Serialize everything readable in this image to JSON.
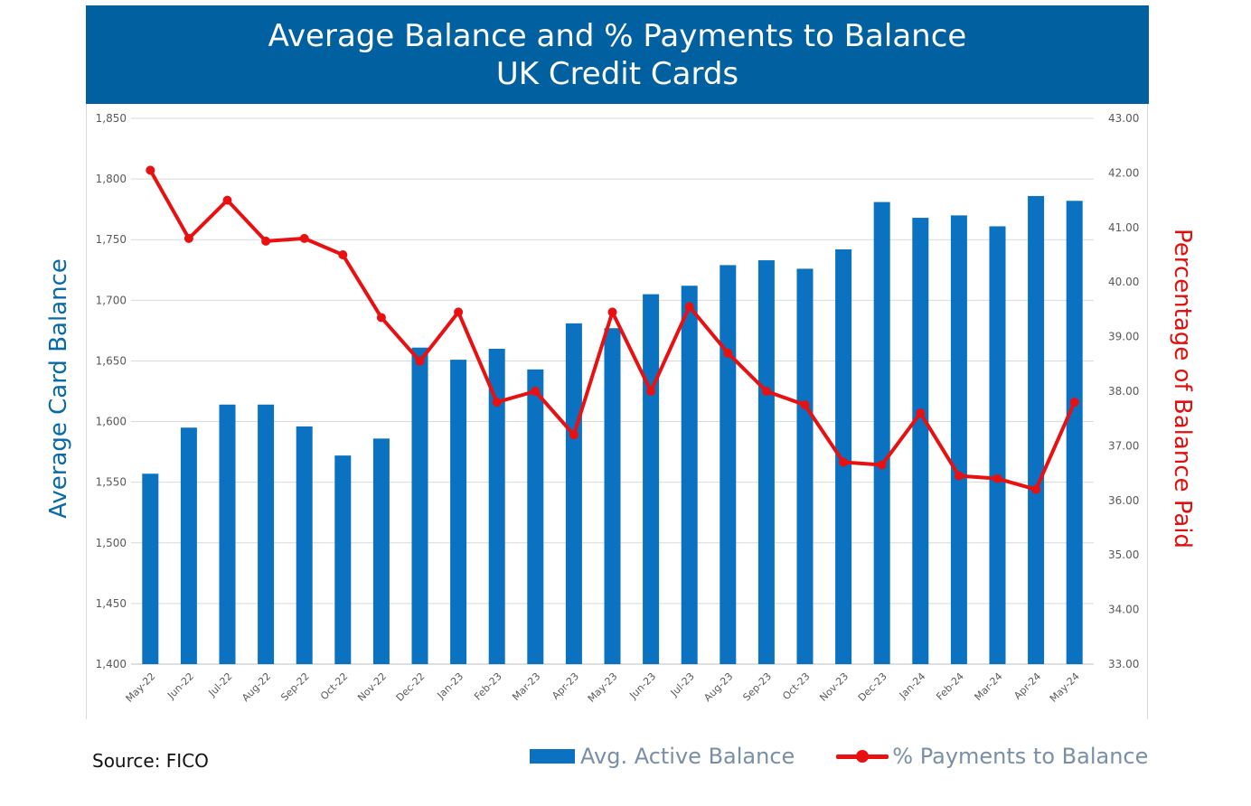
{
  "header": {
    "title_line1": "Average Balance and % Payments to Balance",
    "title_line2": "UK Credit Cards"
  },
  "footer": {
    "source": "Source: FICO"
  },
  "colors": {
    "bar": "#0a72c0",
    "line": "#e81010",
    "banner": "#0060a0",
    "left_axis_label": "#0a6aa8",
    "right_axis_label": "#e01010"
  },
  "chart_data": {
    "type": "bar",
    "title": "Average Balance and % Payments to Balance UK Credit Cards",
    "ylabel": "Average Card Balance",
    "y2label": "Percentage of Balance Paid",
    "ylim": [
      1400,
      1850
    ],
    "y2lim": [
      33.0,
      43.0
    ],
    "y_ticks": [
      "1,400",
      "1,450",
      "1,500",
      "1,550",
      "1,600",
      "1,650",
      "1,700",
      "1,750",
      "1,800",
      "1,850"
    ],
    "y2_ticks": [
      "33.00",
      "34.00",
      "35.00",
      "36.00",
      "37.00",
      "38.00",
      "39.00",
      "40.00",
      "41.00",
      "42.00",
      "43.00"
    ],
    "grid": true,
    "legend_position": "bottom-right",
    "categories": [
      "May-22",
      "Jun-22",
      "Jul-22",
      "Aug-22",
      "Sep-22",
      "Oct-22",
      "Nov-22",
      "Dec-22",
      "Jan-23",
      "Feb-23",
      "Mar-23",
      "Apr-23",
      "May-23",
      "Jun-23",
      "Jul-23",
      "Aug-23",
      "Sep-23",
      "Oct-23",
      "Nov-23",
      "Dec-23",
      "Jan-24",
      "Feb-24",
      "Mar-24",
      "Apr-24",
      "May-24"
    ],
    "series": [
      {
        "name": "Avg. Active Balance",
        "type": "bar",
        "axis": "left",
        "values": [
          1557,
          1595,
          1614,
          1614,
          1596,
          1572,
          1586,
          1661,
          1651,
          1660,
          1643,
          1681,
          1677,
          1705,
          1712,
          1729,
          1733,
          1726,
          1742,
          1781,
          1768,
          1770,
          1761,
          1786,
          1782
        ]
      },
      {
        "name": "% Payments to Balance",
        "type": "line",
        "axis": "right",
        "values": [
          42.05,
          40.8,
          41.5,
          40.75,
          40.8,
          40.5,
          39.35,
          38.55,
          39.45,
          37.8,
          38.0,
          37.2,
          39.45,
          38.0,
          39.55,
          38.7,
          38.0,
          37.75,
          36.7,
          36.65,
          37.6,
          36.45,
          36.4,
          36.2,
          37.8
        ]
      }
    ]
  }
}
